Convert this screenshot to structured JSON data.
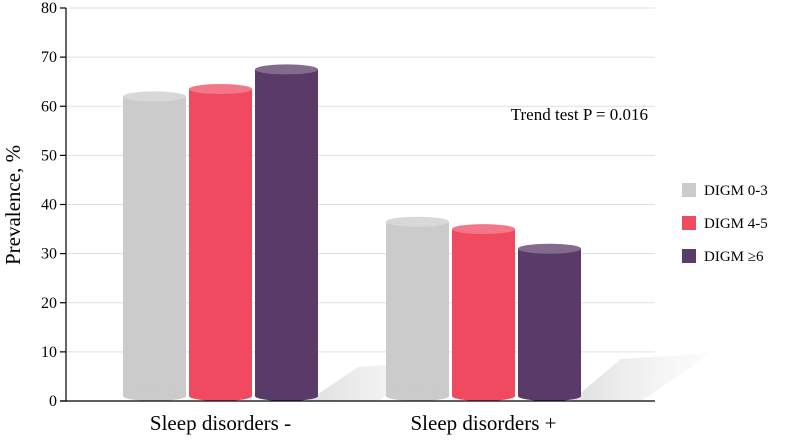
{
  "chart_data": {
    "type": "bar",
    "style": "3d-cylinder",
    "title": "",
    "xlabel": "",
    "ylabel": "Prevalence, %",
    "ylim": [
      0,
      80
    ],
    "yticks": [
      0,
      10,
      20,
      30,
      40,
      50,
      60,
      70,
      80
    ],
    "grid": true,
    "categories": [
      "Sleep disorders -",
      "Sleep disorders +"
    ],
    "series": [
      {
        "name": "DIGM 0-3",
        "color": "#cbcbcb",
        "values": [
          62,
          36.5
        ]
      },
      {
        "name": "DIGM 4-5",
        "color": "#ef4a60",
        "values": [
          63.5,
          35
        ]
      },
      {
        "name": "DIGM ≥6",
        "color": "#5a3a68",
        "values": [
          67.5,
          31
        ]
      }
    ],
    "legend_position": "right",
    "annotation": "Trend test P = 0.016"
  }
}
